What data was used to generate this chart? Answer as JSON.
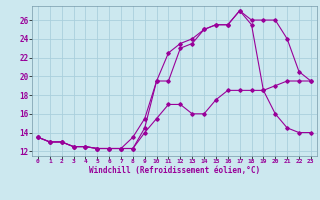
{
  "xlabel": "Windchill (Refroidissement éolien,°C)",
  "bg_color": "#cce8ef",
  "grid_color": "#aacfdc",
  "line_color": "#990099",
  "xlim": [
    -0.5,
    23.5
  ],
  "ylim": [
    11.5,
    27.5
  ],
  "xticks": [
    0,
    1,
    2,
    3,
    4,
    5,
    6,
    7,
    8,
    9,
    10,
    11,
    12,
    13,
    14,
    15,
    16,
    17,
    18,
    19,
    20,
    21,
    22,
    23
  ],
  "yticks": [
    12,
    14,
    16,
    18,
    20,
    22,
    24,
    26
  ],
  "line1_x": [
    0,
    1,
    2,
    3,
    4,
    5,
    6,
    7,
    8,
    9,
    10,
    11,
    12,
    13,
    14,
    15,
    16,
    17,
    18,
    19,
    20,
    21,
    22,
    23
  ],
  "line1_y": [
    13.5,
    13.0,
    13.0,
    12.5,
    12.5,
    12.3,
    12.3,
    12.3,
    12.3,
    14.5,
    19.5,
    19.5,
    23.0,
    23.5,
    25.0,
    25.5,
    25.5,
    27.0,
    26.0,
    26.0,
    26.0,
    24.0,
    20.5,
    19.5
  ],
  "line2_x": [
    0,
    1,
    2,
    3,
    4,
    5,
    6,
    7,
    8,
    9,
    10,
    11,
    12,
    13,
    14,
    15,
    16,
    17,
    18,
    19,
    20,
    21,
    22,
    23
  ],
  "line2_y": [
    13.5,
    13.0,
    13.0,
    12.5,
    12.5,
    12.3,
    12.3,
    12.3,
    13.5,
    15.5,
    19.5,
    22.5,
    23.5,
    24.0,
    25.0,
    25.5,
    25.5,
    27.0,
    25.5,
    18.5,
    16.0,
    14.5,
    14.0,
    14.0
  ],
  "line3_x": [
    0,
    1,
    2,
    3,
    4,
    5,
    6,
    7,
    8,
    9,
    10,
    11,
    12,
    13,
    14,
    15,
    16,
    17,
    18,
    19,
    20,
    21,
    22,
    23
  ],
  "line3_y": [
    13.5,
    13.0,
    13.0,
    12.5,
    12.5,
    12.3,
    12.3,
    12.3,
    12.3,
    14.0,
    15.5,
    17.0,
    17.0,
    16.0,
    16.0,
    17.5,
    18.5,
    18.5,
    18.5,
    18.5,
    19.0,
    19.5,
    19.5,
    19.5
  ]
}
